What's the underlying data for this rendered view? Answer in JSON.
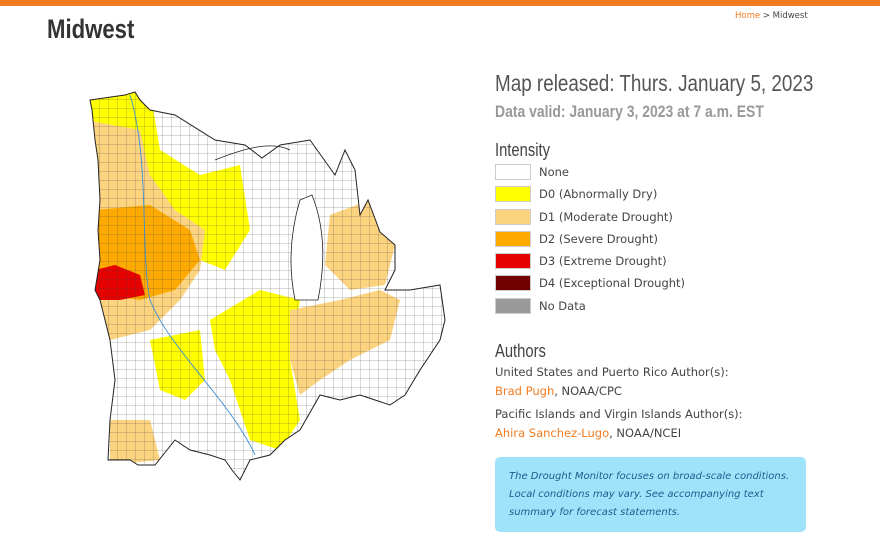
{
  "header": {
    "title": "Midwest",
    "breadcrumb": {
      "home": "Home",
      "separator": ">",
      "current": "Midwest"
    }
  },
  "map_info": {
    "released": "Map released: Thurs. January 5, 2023",
    "valid": "Data valid: January 3, 2023 at 7 a.m. EST"
  },
  "legend": {
    "title": "Intensity",
    "items": [
      {
        "label": "None",
        "color": "#ffffff"
      },
      {
        "label": "D0 (Abnormally Dry)",
        "color": "#ffff00"
      },
      {
        "label": "D1 (Moderate Drought)",
        "color": "#fcd37f"
      },
      {
        "label": "D2 (Severe Drought)",
        "color": "#ffaa00"
      },
      {
        "label": "D3 (Extreme Drought)",
        "color": "#e60000"
      },
      {
        "label": "D4 (Exceptional Drought)",
        "color": "#730000"
      },
      {
        "label": "No Data",
        "color": "#999999"
      }
    ]
  },
  "authors": {
    "title": "Authors",
    "groups": [
      {
        "heading": "United States and Puerto Rico Author(s):",
        "name": "Brad Pugh",
        "affiliation": ", NOAA/CPC"
      },
      {
        "heading": "Pacific Islands and Virgin Islands Author(s):",
        "name": "Ahira Sanchez-Lugo",
        "affiliation": ", NOAA/NCEI"
      }
    ]
  },
  "note": "The Drought Monitor focuses on broad-scale conditions. Local conditions may vary. See accompanying text summary for forecast statements."
}
